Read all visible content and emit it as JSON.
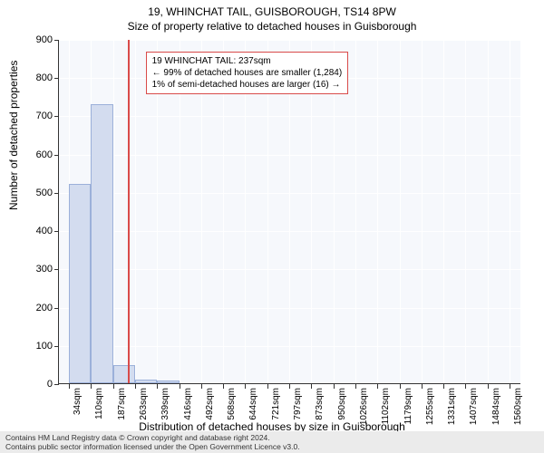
{
  "title_line1": "19, WHINCHAT TAIL, GUISBOROUGH, TS14 8PW",
  "title_line2": "Size of property relative to detached houses in Guisborough",
  "ylabel": "Number of detached properties",
  "xlabel": "Distribution of detached houses by size in Guisborough",
  "chart": {
    "type": "histogram",
    "background_color": "#f6f8fc",
    "grid_color": "#ffffff",
    "axis_color": "#333333",
    "bar_fill": "#d3dcef",
    "bar_border": "#9bb0d9",
    "ref_line_color": "#d94b4a",
    "ylim": [
      0,
      900
    ],
    "ytick_step": 100,
    "yticks": [
      0,
      100,
      200,
      300,
      400,
      500,
      600,
      700,
      800,
      900
    ],
    "xlim_sqm": [
      0,
      1600
    ],
    "xtick_labels": [
      "34sqm",
      "110sqm",
      "187sqm",
      "263sqm",
      "339sqm",
      "416sqm",
      "492sqm",
      "568sqm",
      "644sqm",
      "721sqm",
      "797sqm",
      "873sqm",
      "950sqm",
      "1026sqm",
      "1102sqm",
      "1179sqm",
      "1255sqm",
      "1331sqm",
      "1407sqm",
      "1484sqm",
      "1560sqm"
    ],
    "xtick_positions_sqm": [
      34,
      110,
      187,
      263,
      339,
      416,
      492,
      568,
      644,
      721,
      797,
      873,
      950,
      1026,
      1102,
      1179,
      1255,
      1331,
      1407,
      1484,
      1560
    ],
    "bars": [
      {
        "x_sqm": 34,
        "width_sqm": 76,
        "count": 520
      },
      {
        "x_sqm": 110,
        "width_sqm": 77,
        "count": 730
      },
      {
        "x_sqm": 187,
        "width_sqm": 76,
        "count": 48
      },
      {
        "x_sqm": 263,
        "width_sqm": 76,
        "count": 10
      },
      {
        "x_sqm": 339,
        "width_sqm": 77,
        "count": 8
      }
    ],
    "ref_line_sqm": 237,
    "info_box": {
      "line1": "19 WHINCHAT TAIL: 237sqm",
      "line2": "← 99% of detached houses are smaller (1,284)",
      "line3": "1% of semi-detached houses are larger (16) →",
      "left_sqm": 300,
      "top_val": 870,
      "border_color": "#d94b4a",
      "bg_color": "#ffffff"
    }
  },
  "footer_line1": "Contains HM Land Registry data © Crown copyright and database right 2024.",
  "footer_line2": "Contains public sector information licensed under the Open Government Licence v3.0.",
  "footer_bg": "#ebebeb"
}
